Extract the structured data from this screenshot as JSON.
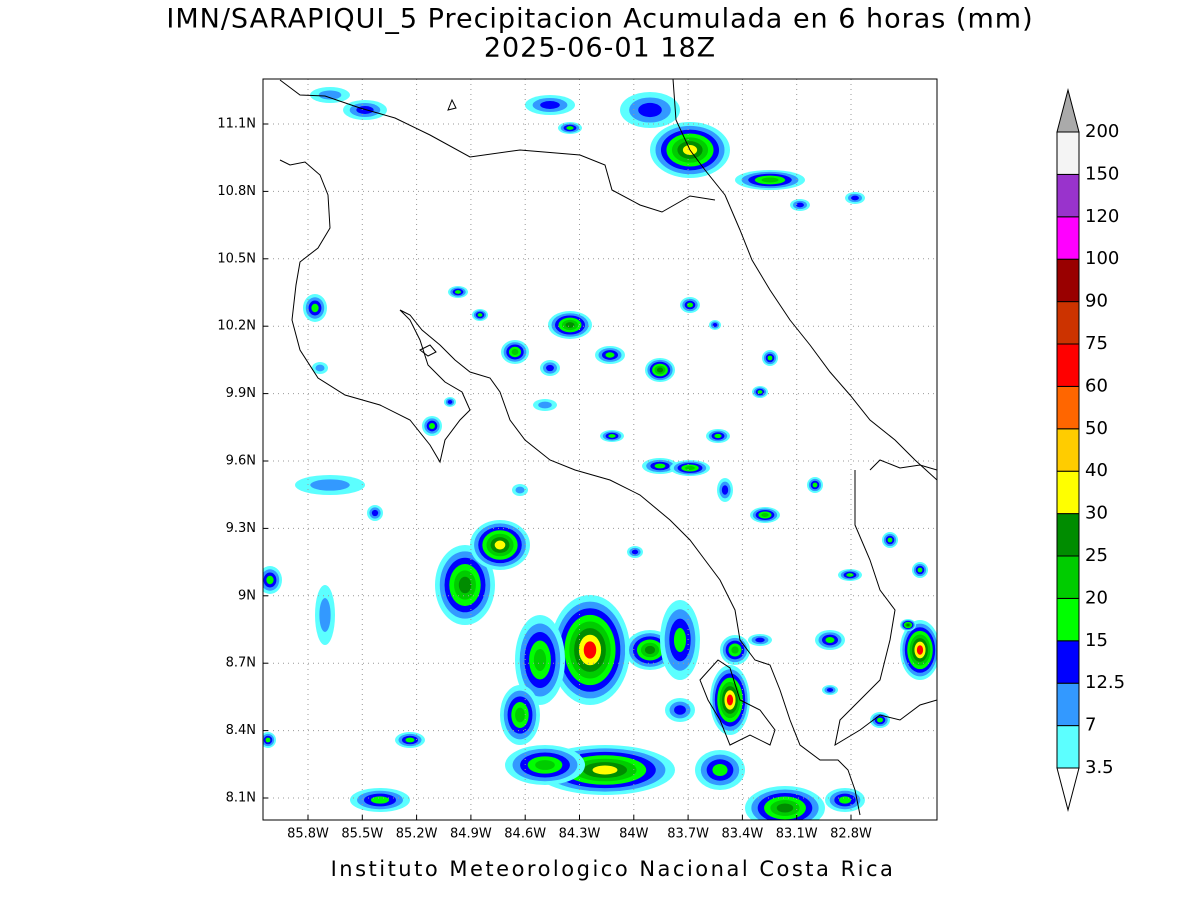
{
  "title": "IMN/SARAPIQUI_5 Precipitacion Acumulada en 6 horas (mm)",
  "subtitle": "2025-06-01 18Z",
  "map": {
    "lat_ticks": [
      "11.1N",
      "10.8N",
      "10.5N",
      "10.2N",
      "9.9N",
      "9.6N",
      "9.3N",
      "9N",
      "8.7N",
      "8.4N",
      "8.1N"
    ],
    "lon_ticks": [
      "85.8W",
      "85.5W",
      "85.2W",
      "84.9W",
      "84.6W",
      "84.3W",
      "84W",
      "83.7W",
      "83.4W",
      "83.1W",
      "82.8W"
    ]
  },
  "colorbar": {
    "levels": [
      "3.5",
      "7",
      "12.5",
      "15",
      "20",
      "25",
      "30",
      "40",
      "50",
      "60",
      "75",
      "90",
      "100",
      "120",
      "150",
      "200"
    ],
    "colors": [
      "#5cffff",
      "#3399ff",
      "#0000ff",
      "#00ff00",
      "#00cc00",
      "#008c00",
      "#ffff00",
      "#ffcc00",
      "#ff6600",
      "#ff0000",
      "#cc3300",
      "#990000",
      "#ff00ff",
      "#9933cc",
      "#f4f4f4"
    ],
    "over_color": "#aaaaaa",
    "under_color": "#ffffff"
  },
  "footer": "Instituto Meteorologico Nacional Costa Rica"
}
